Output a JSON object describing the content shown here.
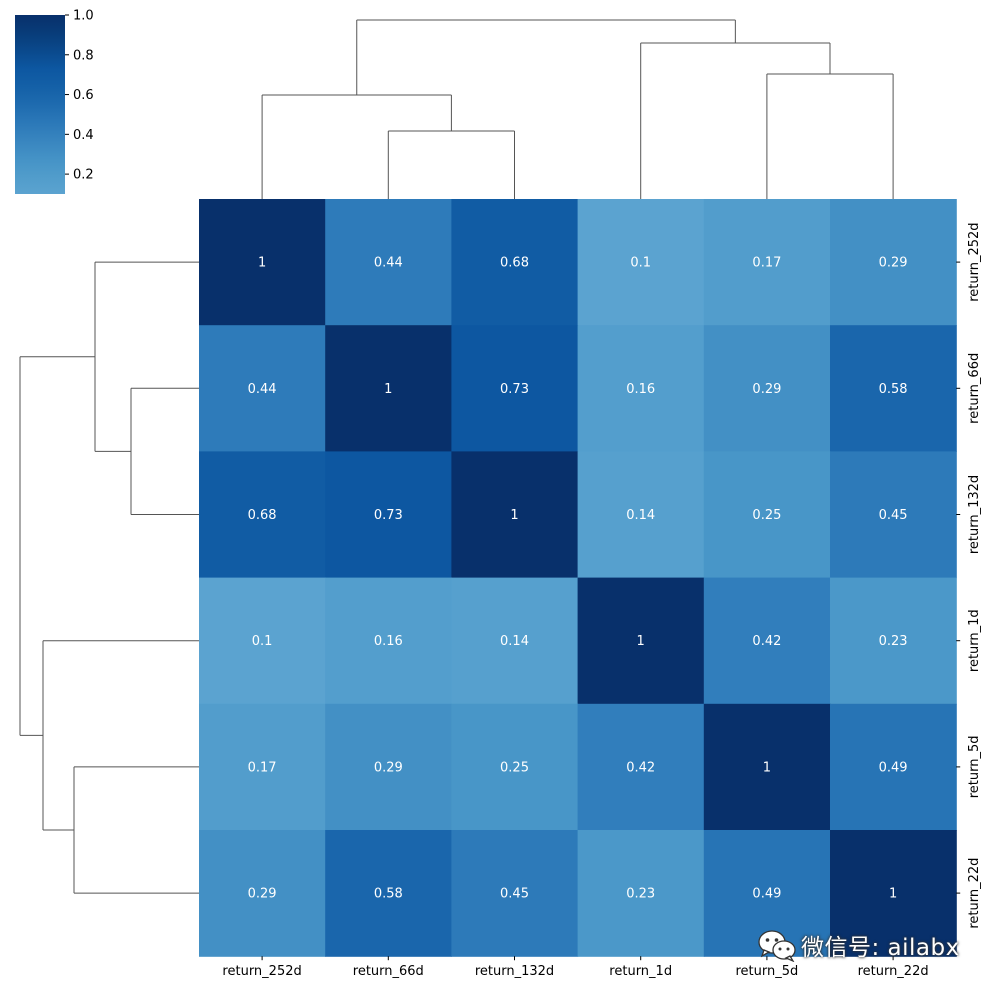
{
  "chart_data": {
    "type": "heatmap",
    "title": "",
    "row_labels": [
      "return_252d",
      "return_66d",
      "return_132d",
      "return_1d",
      "return_5d",
      "return_22d"
    ],
    "col_labels": [
      "return_252d",
      "return_66d",
      "return_132d",
      "return_1d",
      "return_5d",
      "return_22d"
    ],
    "values": [
      [
        1,
        0.44,
        0.68,
        0.1,
        0.17,
        0.29
      ],
      [
        0.44,
        1,
        0.73,
        0.16,
        0.29,
        0.58
      ],
      [
        0.68,
        0.73,
        1,
        0.14,
        0.25,
        0.45
      ],
      [
        0.1,
        0.16,
        0.14,
        1,
        0.42,
        0.23
      ],
      [
        0.17,
        0.29,
        0.25,
        0.42,
        1,
        0.49
      ],
      [
        0.29,
        0.58,
        0.45,
        0.23,
        0.49,
        1
      ]
    ],
    "colorbar": {
      "range": [
        0.1,
        1.0
      ],
      "ticks": [
        "0.2",
        "0.4",
        "0.6",
        "0.8",
        "1.0"
      ],
      "colormap": "Blues",
      "color_low": "#5ba3d0",
      "color_high": "#08306b"
    },
    "dendrograms": {
      "top": "column clustering tree",
      "left": "row clustering tree"
    },
    "annotations": true
  },
  "watermark": {
    "text": "微信号: ailabx",
    "icon": "wechat-icon"
  }
}
